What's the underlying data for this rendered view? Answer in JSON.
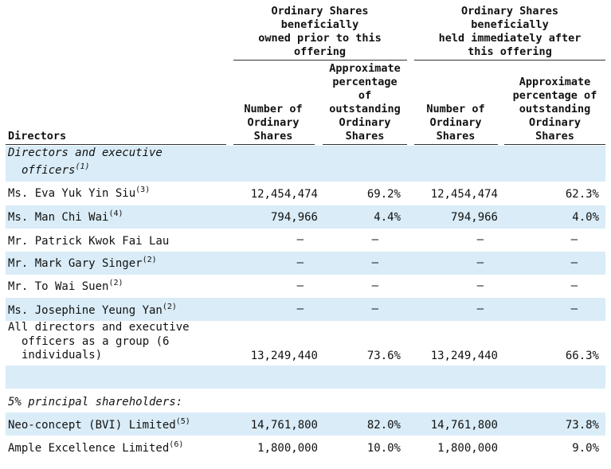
{
  "headers": {
    "group_prior": "Ordinary Shares\nbeneficially\nowned prior to this\noffering",
    "group_after": "Ordinary Shares\nbeneficially\nheld immediately after\nthis offering",
    "num_prior": "Number of\nOrdinary\nShares",
    "pct_prior": "Approximate\npercentage\nof\noutstanding\nOrdinary\nShares",
    "num_after": "Number of\nOrdinary\nShares",
    "pct_after": "Approximate\npercentage of\noutstanding\nOrdinary\nShares",
    "directors": "Directors"
  },
  "sections": {
    "directors_line1": "Directors and executive",
    "directors_line2": "officers",
    "directors_note": "(1)",
    "principal": "5% principal shareholders:"
  },
  "rows": [
    {
      "name": "Ms. Eva Yuk Yin Siu",
      "note": "(3)",
      "num_prior": "12,454,474",
      "pct_prior": "69.2%",
      "num_after": "12,454,474",
      "pct_after": "62.3%"
    },
    {
      "name": "Ms. Man Chi Wai",
      "note": "(4)",
      "num_prior": "794,966",
      "pct_prior": "4.4%",
      "num_after": "794,966",
      "pct_after": "4.0%"
    },
    {
      "name": "Mr. Patrick Kwok Fai Lau",
      "note": "",
      "num_prior": "—",
      "pct_prior": "—",
      "num_after": "—",
      "pct_after": "—"
    },
    {
      "name": "Mr. Mark Gary Singer",
      "note": "(2)",
      "num_prior": "—",
      "pct_prior": "—",
      "num_after": "—",
      "pct_after": "—"
    },
    {
      "name": "Mr. To Wai Suen",
      "note": "(2)",
      "num_prior": "—",
      "pct_prior": "—",
      "num_after": "—",
      "pct_after": "—"
    },
    {
      "name": "Ms. Josephine Yeung Yan",
      "note": "(2)",
      "num_prior": "—",
      "pct_prior": "—",
      "num_after": "—",
      "pct_after": "—"
    }
  ],
  "group_row": {
    "line1": "All directors and executive",
    "line2": "officers as a group (6",
    "line3": "individuals)",
    "num_prior": "13,249,440",
    "pct_prior": "73.6%",
    "num_after": "13,249,440",
    "pct_after": "66.3%"
  },
  "principal_rows": [
    {
      "name": "Neo-concept (BVI) Limited",
      "note": "(5)",
      "num_prior": "14,761,800",
      "pct_prior": "82.0%",
      "num_after": "14,761,800",
      "pct_after": "73.8%"
    },
    {
      "name": "Ample Excellence Limited",
      "note": "(6)",
      "num_prior": "1,800,000",
      "pct_prior": "10.0%",
      "num_after": "1,800,000",
      "pct_after": "9.0%"
    }
  ]
}
